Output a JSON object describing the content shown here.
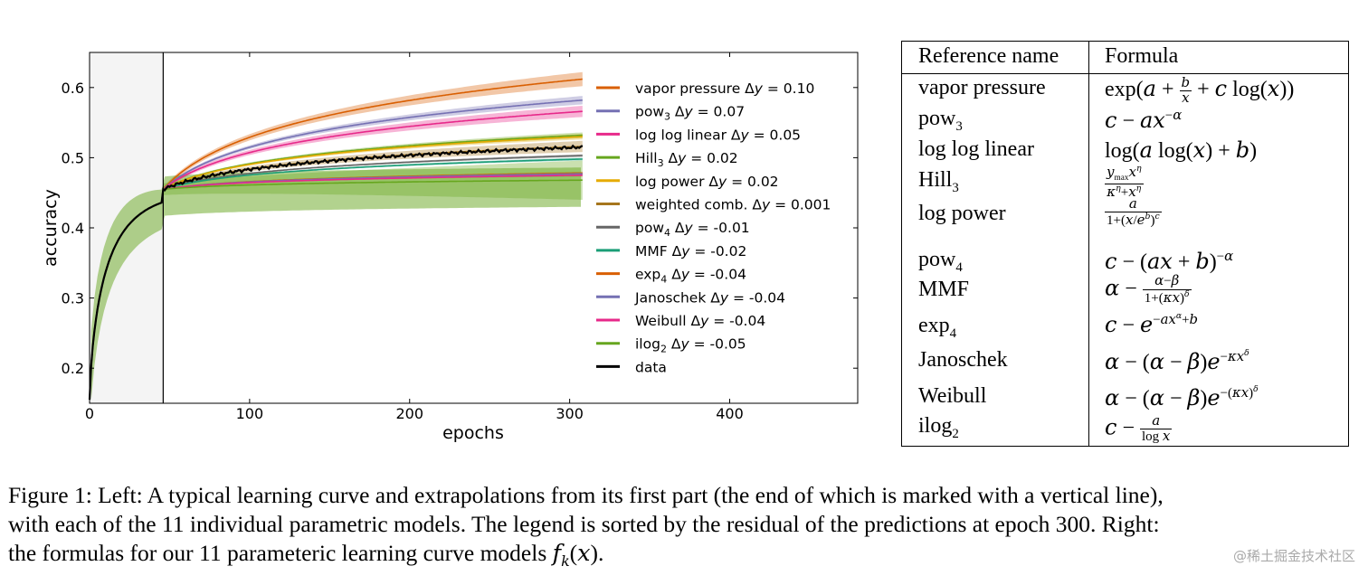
{
  "chart_data": {
    "type": "line",
    "xlabel": "epochs",
    "ylabel": "accuracy",
    "xlim": [
      0,
      480
    ],
    "ylim": [
      0.15,
      0.65
    ],
    "xticks": [
      "0",
      "100",
      "200",
      "300",
      "400"
    ],
    "xtick_values": [
      0,
      100,
      200,
      300,
      400
    ],
    "yticks": [
      "0.2",
      "0.3",
      "0.4",
      "0.5",
      "0.6"
    ],
    "ytick_values": [
      0.2,
      0.3,
      0.4,
      0.5,
      0.6
    ],
    "observed_until_epoch": 46,
    "legend_placement": "right",
    "series": [
      {
        "name": "vapor pressure",
        "sub": "",
        "delta": "0.10",
        "color": "#d95f02",
        "end": 0.612,
        "band": 0.01
      },
      {
        "name": "pow",
        "sub": "3",
        "delta": "0.07",
        "color": "#7570b3",
        "end": 0.582,
        "band": 0.006
      },
      {
        "name": "log log linear",
        "sub": "",
        "delta": "0.05",
        "color": "#e7298a",
        "end": 0.566,
        "band": 0.008
      },
      {
        "name": "Hill",
        "sub": "3",
        "delta": "0.02",
        "color": "#66a61e",
        "end": 0.532,
        "band": 0.004
      },
      {
        "name": "log power",
        "sub": "",
        "delta": "0.02",
        "color": "#e6ab02",
        "end": 0.53,
        "band": 0.004
      },
      {
        "name": "weighted comb.",
        "sub": "",
        "delta": "0.001",
        "color": "#a6761d",
        "end": 0.516,
        "band": 0.008
      },
      {
        "name": "pow",
        "sub": "4",
        "delta": "-0.01",
        "color": "#666666",
        "end": 0.503,
        "band": 0.002
      },
      {
        "name": "MMF",
        "sub": "",
        "delta": "-0.02",
        "color": "#1b9e77",
        "end": 0.498,
        "band": 0.002
      },
      {
        "name": "exp",
        "sub": "4",
        "delta": "-0.04",
        "color": "#d95f02",
        "end": 0.478,
        "band": 0.002
      },
      {
        "name": "Janoschek",
        "sub": "",
        "delta": "-0.04",
        "color": "#7570b3",
        "end": 0.477,
        "band": 0.002
      },
      {
        "name": "Weibull",
        "sub": "",
        "delta": "-0.04",
        "color": "#e7298a",
        "end": 0.475,
        "band": 0.002
      },
      {
        "name": "ilog",
        "sub": "2",
        "delta": "-0.05",
        "color": "#66a61e",
        "end": 0.468,
        "band": 0.028
      },
      {
        "name": "data",
        "sub": "",
        "delta": "",
        "color": "#000000",
        "end": 0.515,
        "band": 0
      }
    ]
  },
  "table": {
    "header_name": "Reference name",
    "header_formula": "Formula",
    "rows": [
      {
        "name": "vapor pressure",
        "name_sub": ""
      },
      {
        "name": "pow",
        "name_sub": "3"
      },
      {
        "name": "log log linear",
        "name_sub": ""
      },
      {
        "name": "Hill",
        "name_sub": "3"
      },
      {
        "name": "log power",
        "name_sub": ""
      },
      {
        "name": "pow",
        "name_sub": "4"
      },
      {
        "name": "MMF",
        "name_sub": ""
      },
      {
        "name": "exp",
        "name_sub": "4"
      },
      {
        "name": "Janoschek",
        "name_sub": ""
      },
      {
        "name": "Weibull",
        "name_sub": ""
      },
      {
        "name": "ilog",
        "name_sub": "2"
      }
    ]
  },
  "caption": {
    "line1": "Figure 1: Left: A typical learning curve and extrapolations from its first part (the end of which is marked with a vertical line),",
    "line2": "with each of the 11 individual parametric models. The legend is sorted by the residual of the predictions at epoch 300. Right:",
    "line3_prefix": "the formulas for our 11 parameteric learning curve models "
  },
  "watermark": "@稀土掘金技术社区"
}
